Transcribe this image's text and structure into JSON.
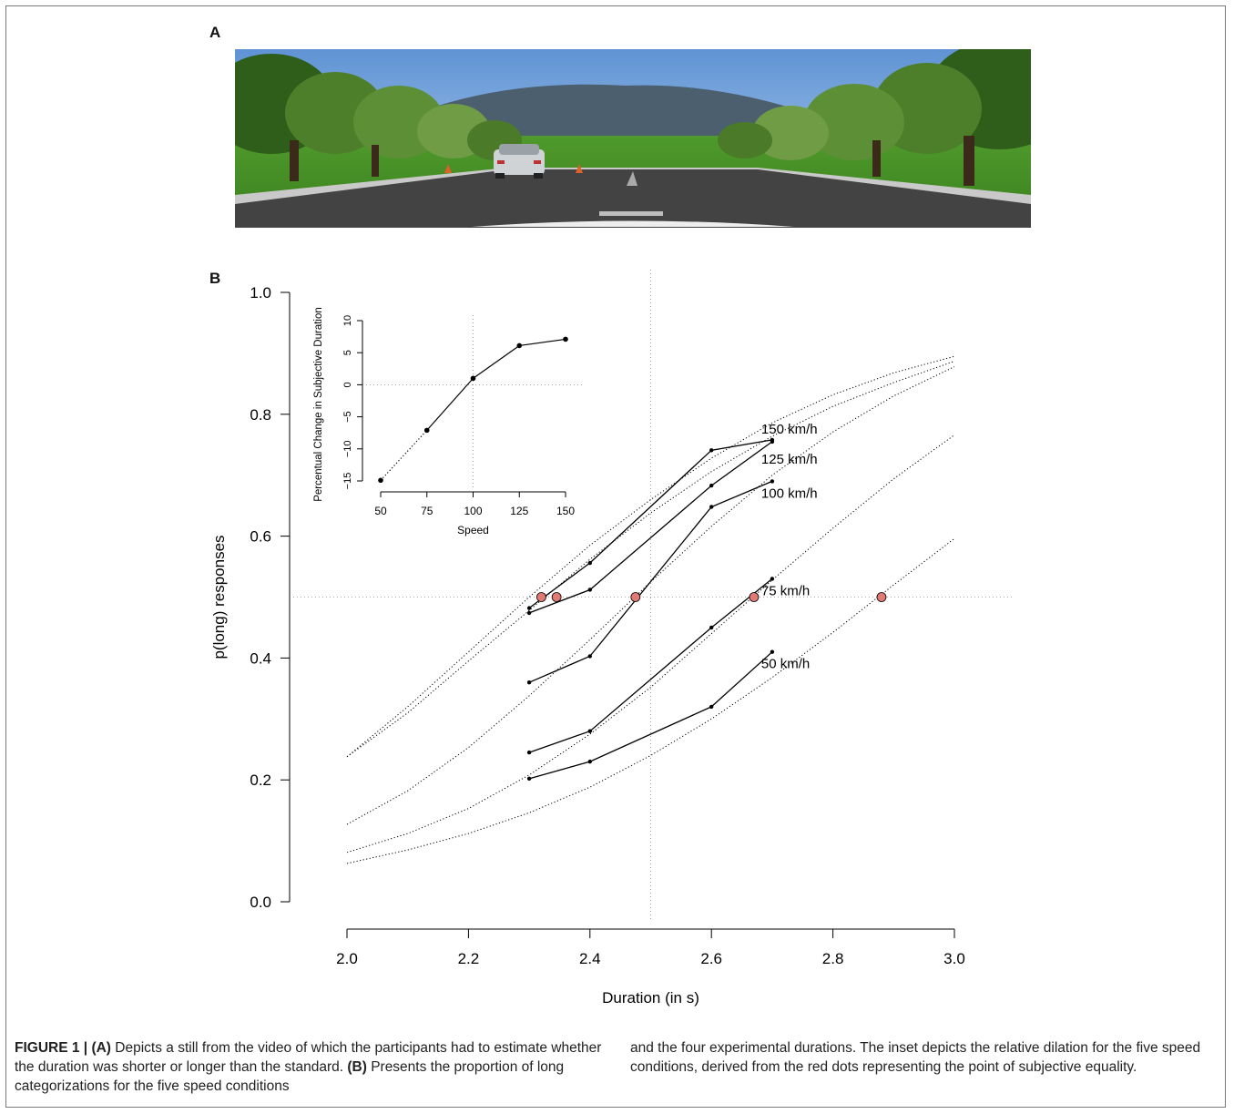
{
  "panels": {
    "a_label": "A",
    "b_label": "B"
  },
  "caption": {
    "figure_label": "FIGURE 1 |",
    "part_a_tag": "(A)",
    "part_a_text": "Depicts a still from the video of which the participants had to estimate whether the duration was shorter or longer than the standard.",
    "part_b_tag": "(B)",
    "part_b_text_1": "Presents the proportion of long categorizations for the five speed conditions",
    "part_b_text_2": "and the four experimental durations. The inset depicts the relative dilation for the five speed conditions, derived from the red dots representing the point of subjective equality."
  },
  "colors": {
    "pse_dot": "#e07a74",
    "line": "#000000",
    "reference": "#888888",
    "sky": "#6fa0d8",
    "grass": "#3f8f25",
    "road": "#444444"
  },
  "chart_data": [
    {
      "type": "line",
      "xlabel": "Duration (in s)",
      "ylabel": "p(long) responses",
      "xlim": [
        2.0,
        3.0
      ],
      "ylim": [
        0.0,
        1.0
      ],
      "x_ticks": [
        "2.0",
        "2.2",
        "2.4",
        "2.6",
        "2.8",
        "3.0"
      ],
      "y_ticks": [
        "0.0",
        "0.2",
        "0.4",
        "0.6",
        "0.8",
        "1.0"
      ],
      "x": [
        2.3,
        2.4,
        2.6,
        2.7
      ],
      "series": [
        {
          "name": "150 km/h",
          "values": [
            0.482,
            0.556,
            0.741,
            0.758
          ],
          "pse": 2.32,
          "fit": [
            [
              2.0,
              0.238
            ],
            [
              2.1,
              0.32
            ],
            [
              2.2,
              0.41
            ],
            [
              2.3,
              0.5
            ],
            [
              2.4,
              0.585
            ],
            [
              2.5,
              0.66
            ],
            [
              2.6,
              0.728
            ],
            [
              2.7,
              0.786
            ],
            [
              2.8,
              0.832
            ],
            [
              2.9,
              0.868
            ],
            [
              3.0,
              0.895
            ]
          ]
        },
        {
          "name": "125 km/h",
          "values": [
            0.474,
            0.512,
            0.683,
            0.755
          ],
          "pse": 2.345,
          "fit": [
            [
              2.0,
              0.238
            ],
            [
              2.1,
              0.31
            ],
            [
              2.2,
              0.395
            ],
            [
              2.3,
              0.478
            ],
            [
              2.4,
              0.562
            ],
            [
              2.5,
              0.638
            ],
            [
              2.6,
              0.706
            ],
            [
              2.7,
              0.764
            ],
            [
              2.8,
              0.813
            ],
            [
              2.9,
              0.852
            ],
            [
              3.0,
              0.887
            ]
          ]
        },
        {
          "name": "100 km/h",
          "values": [
            0.36,
            0.403,
            0.648,
            0.69
          ],
          "pse": 2.475,
          "fit": [
            [
              2.0,
              0.127
            ],
            [
              2.1,
              0.182
            ],
            [
              2.2,
              0.253
            ],
            [
              2.3,
              0.338
            ],
            [
              2.4,
              0.43
            ],
            [
              2.5,
              0.525
            ],
            [
              2.6,
              0.616
            ],
            [
              2.7,
              0.7
            ],
            [
              2.8,
              0.771
            ],
            [
              2.9,
              0.83
            ],
            [
              3.0,
              0.878
            ]
          ]
        },
        {
          "name": "75 km/h",
          "values": [
            0.245,
            0.28,
            0.45,
            0.53
          ],
          "pse": 2.67,
          "fit": [
            [
              2.0,
              0.081
            ],
            [
              2.1,
              0.112
            ],
            [
              2.2,
              0.153
            ],
            [
              2.3,
              0.208
            ],
            [
              2.4,
              0.275
            ],
            [
              2.5,
              0.352
            ],
            [
              2.6,
              0.44
            ],
            [
              2.7,
              0.528
            ],
            [
              2.8,
              0.613
            ],
            [
              2.9,
              0.694
            ],
            [
              3.0,
              0.766
            ]
          ]
        },
        {
          "name": "50 km/h",
          "values": [
            0.202,
            0.23,
            0.32,
            0.41
          ],
          "pse": 2.88,
          "fit": [
            [
              2.0,
              0.063
            ],
            [
              2.1,
              0.085
            ],
            [
              2.2,
              0.112
            ],
            [
              2.3,
              0.146
            ],
            [
              2.4,
              0.188
            ],
            [
              2.5,
              0.24
            ],
            [
              2.6,
              0.3
            ],
            [
              2.7,
              0.368
            ],
            [
              2.8,
              0.442
            ],
            [
              2.9,
              0.52
            ],
            [
              3.0,
              0.596
            ]
          ]
        }
      ],
      "reference_lines": {
        "x": 2.5,
        "y": 0.5
      }
    },
    {
      "type": "line",
      "xlabel": "Speed",
      "ylabel": "Percentual Change in Subjective Duration",
      "x": [
        50,
        75,
        100,
        125,
        150
      ],
      "values": [
        -14.9,
        -7.1,
        1.0,
        6.1,
        7.1
      ],
      "x_ticks": [
        "50",
        "75",
        "100",
        "125",
        "150"
      ],
      "y_ticks": [
        "−15",
        "−10",
        "−5",
        "0",
        "5",
        "10"
      ],
      "xlim": [
        50,
        150
      ],
      "ylim": [
        -15,
        10
      ],
      "reference_lines": {
        "x": 100,
        "y": 0
      }
    }
  ]
}
